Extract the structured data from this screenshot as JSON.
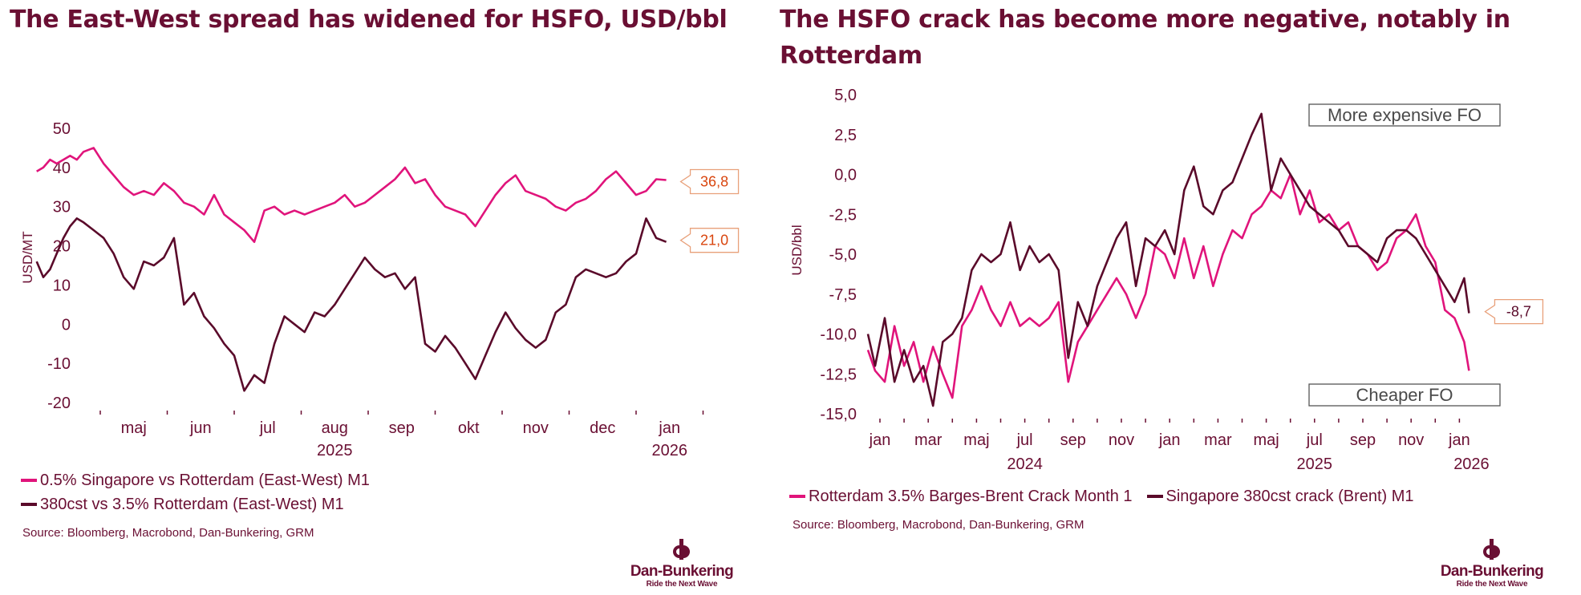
{
  "colors": {
    "brand": "#6a0f33",
    "series_pink": "#e0147b",
    "series_dark": "#5a0a2a",
    "callout_orange": "#d9460f",
    "callout_border": "#e8a07a",
    "annotation_border": "#555555"
  },
  "left": {
    "title": "The East-West spread has widened for HSFO, USD/bbl",
    "source": "Source: Bloomberg, Macrobond, Dan-Bunkering, GRM",
    "logo": {
      "name": "Dan-Bunkering",
      "tagline": "Ride the Next Wave"
    }
  },
  "right": {
    "title": "The HSFO crack has become more negative, notably in Rotterdam",
    "source": "Source: Bloomberg, Macrobond, Dan-Bunkering, GRM",
    "logo": {
      "name": "Dan-Bunkering",
      "tagline": "Ride the Next Wave"
    }
  },
  "chart_data": [
    {
      "type": "line",
      "title": "The East-West spread has widened for HSFO, USD/bbl",
      "ylabel": "USD/MT",
      "xlabel": "",
      "ylim": [
        -20,
        50
      ],
      "yticks": [
        50,
        40,
        30,
        20,
        10,
        0,
        -10,
        -20
      ],
      "x_range_months": [
        0,
        10
      ],
      "x_month_labels": [
        {
          "label": "maj",
          "pos": 0.5
        },
        {
          "label": "jun",
          "pos": 1.5
        },
        {
          "label": "jul",
          "pos": 2.5
        },
        {
          "label": "aug",
          "pos": 3.5
        },
        {
          "label": "sep",
          "pos": 4.5
        },
        {
          "label": "okt",
          "pos": 5.5
        },
        {
          "label": "nov",
          "pos": 6.5
        },
        {
          "label": "dec",
          "pos": 7.5
        },
        {
          "label": "jan",
          "pos": 8.5
        }
      ],
      "x_year_labels": [
        {
          "label": "2025",
          "pos": 3.5
        },
        {
          "label": "2026",
          "pos": 8.5
        }
      ],
      "series": [
        {
          "name": "0.5% Singapore vs Rotterdam (East-West) M1",
          "color": "#e0147b",
          "last_value_label": "36,8",
          "x": [
            -0.95,
            -0.85,
            -0.75,
            -0.65,
            -0.55,
            -0.45,
            -0.35,
            -0.25,
            -0.1,
            0.05,
            0.2,
            0.35,
            0.5,
            0.65,
            0.8,
            0.95,
            1.1,
            1.25,
            1.4,
            1.55,
            1.7,
            1.85,
            2.0,
            2.15,
            2.3,
            2.45,
            2.6,
            2.75,
            2.9,
            3.05,
            3.2,
            3.35,
            3.5,
            3.65,
            3.8,
            3.95,
            4.1,
            4.25,
            4.4,
            4.55,
            4.7,
            4.85,
            5.0,
            5.15,
            5.3,
            5.45,
            5.6,
            5.75,
            5.9,
            6.05,
            6.2,
            6.35,
            6.5,
            6.65,
            6.8,
            6.95,
            7.1,
            7.25,
            7.4,
            7.55,
            7.7,
            7.85,
            8.0,
            8.15,
            8.3,
            8.45
          ],
          "y": [
            39,
            40,
            42,
            41,
            42,
            43,
            42,
            44,
            45,
            41,
            38,
            35,
            33,
            34,
            33,
            36,
            34,
            31,
            30,
            28,
            33,
            28,
            26,
            24,
            21,
            29,
            30,
            28,
            29,
            28,
            29,
            30,
            31,
            33,
            30,
            31,
            33,
            35,
            37,
            40,
            36,
            37,
            33,
            30,
            29,
            28,
            25,
            29,
            33,
            36,
            38,
            34,
            33,
            32,
            30,
            29,
            31,
            32,
            34,
            37,
            39,
            36,
            33,
            34,
            37,
            36.8
          ]
        },
        {
          "name": "380cst vs 3.5% Rotterdam (East-West) M1",
          "color": "#5a0a2a",
          "last_value_label": "21,0",
          "x": [
            -0.95,
            -0.85,
            -0.75,
            -0.65,
            -0.55,
            -0.45,
            -0.35,
            -0.25,
            -0.1,
            0.05,
            0.2,
            0.35,
            0.5,
            0.65,
            0.8,
            0.95,
            1.1,
            1.25,
            1.4,
            1.55,
            1.7,
            1.85,
            2.0,
            2.15,
            2.3,
            2.45,
            2.6,
            2.75,
            2.9,
            3.05,
            3.2,
            3.35,
            3.5,
            3.65,
            3.8,
            3.95,
            4.1,
            4.25,
            4.4,
            4.55,
            4.7,
            4.85,
            5.0,
            5.15,
            5.3,
            5.45,
            5.6,
            5.75,
            5.9,
            6.05,
            6.2,
            6.35,
            6.5,
            6.65,
            6.8,
            6.95,
            7.1,
            7.25,
            7.4,
            7.55,
            7.7,
            7.85,
            8.0,
            8.15,
            8.3,
            8.45
          ],
          "y": [
            16,
            12,
            14,
            18,
            22,
            25,
            27,
            26,
            24,
            22,
            18,
            12,
            9,
            16,
            15,
            17,
            22,
            5,
            8,
            2,
            -1,
            -5,
            -8,
            -17,
            -13,
            -15,
            -5,
            2,
            0,
            -2,
            3,
            2,
            5,
            9,
            13,
            17,
            14,
            12,
            13,
            9,
            12,
            -5,
            -7,
            -3,
            -6,
            -10,
            -14,
            -8,
            -2,
            3,
            -1,
            -4,
            -6,
            -4,
            3,
            5,
            12,
            14,
            13,
            12,
            13,
            16,
            18,
            27,
            22,
            21
          ]
        }
      ]
    },
    {
      "type": "line",
      "title": "The HSFO crack has become more negative, notably in Rotterdam",
      "ylabel": "USD/bbl",
      "xlabel": "",
      "ylim": [
        -15,
        5
      ],
      "yticks": [
        "5,0",
        "2,5",
        "0,0",
        "-2,5",
        "-5,0",
        "-7,5",
        "-10,0",
        "-12,5",
        "-15,0"
      ],
      "ytick_values": [
        5,
        2.5,
        0,
        -2.5,
        -5,
        -7.5,
        -10,
        -12.5,
        -15
      ],
      "x_month_labels": [
        {
          "label": "jan",
          "pos": 0
        },
        {
          "label": "mar",
          "pos": 2
        },
        {
          "label": "maj",
          "pos": 4
        },
        {
          "label": "jul",
          "pos": 6
        },
        {
          "label": "sep",
          "pos": 8
        },
        {
          "label": "nov",
          "pos": 10
        },
        {
          "label": "jan",
          "pos": 12
        },
        {
          "label": "mar",
          "pos": 14
        },
        {
          "label": "maj",
          "pos": 16
        },
        {
          "label": "jul",
          "pos": 18
        },
        {
          "label": "sep",
          "pos": 20
        },
        {
          "label": "nov",
          "pos": 22
        },
        {
          "label": "jan",
          "pos": 24
        }
      ],
      "x_year_labels": [
        {
          "label": "2024",
          "pos": 6
        },
        {
          "label": "2025",
          "pos": 18
        },
        {
          "label": "2026",
          "pos": 24.5
        }
      ],
      "annotations": [
        "More expensive FO",
        "Cheaper FO"
      ],
      "series": [
        {
          "name": "Rotterdam 3.5% Barges-Brent Crack Month 1",
          "color": "#e0147b",
          "last_value_label": "",
          "x": [
            -0.5,
            -0.2,
            0.2,
            0.6,
            1.0,
            1.4,
            1.8,
            2.2,
            2.6,
            3.0,
            3.4,
            3.8,
            4.2,
            4.6,
            5.0,
            5.4,
            5.8,
            6.2,
            6.6,
            7.0,
            7.4,
            7.8,
            8.2,
            8.6,
            9.0,
            9.4,
            9.8,
            10.2,
            10.6,
            11.0,
            11.4,
            11.8,
            12.2,
            12.6,
            13.0,
            13.4,
            13.8,
            14.2,
            14.6,
            15.0,
            15.4,
            15.8,
            16.2,
            16.6,
            17.0,
            17.4,
            17.8,
            18.2,
            18.6,
            19.0,
            19.4,
            19.8,
            20.2,
            20.6,
            21.0,
            21.4,
            21.8,
            22.2,
            22.6,
            23.0,
            23.4,
            23.8,
            24.2,
            24.4
          ],
          "y": [
            -11,
            -12.3,
            -13,
            -9.5,
            -12,
            -10.5,
            -13,
            -10.8,
            -12.5,
            -14,
            -9.5,
            -8.5,
            -7,
            -8.5,
            -9.5,
            -8,
            -9.5,
            -9,
            -9.5,
            -9,
            -8,
            -13,
            -10.5,
            -9.5,
            -8.5,
            -7.5,
            -6.5,
            -7.5,
            -9,
            -7.5,
            -4.5,
            -5,
            -6.5,
            -4,
            -6.5,
            -4.5,
            -7,
            -5,
            -3.5,
            -4,
            -2.5,
            -2,
            -1,
            -1.5,
            0,
            -2.5,
            -1,
            -3,
            -2.5,
            -3.5,
            -3,
            -4.5,
            -5,
            -6,
            -5.5,
            -4,
            -3.5,
            -2.5,
            -4.5,
            -5.5,
            -8.5,
            -9,
            -10.5,
            -12.3
          ]
        },
        {
          "name": "Singapore 380cst crack (Brent) M1",
          "color": "#5a0a2a",
          "last_value_label": "-8,7",
          "x": [
            -0.5,
            -0.2,
            0.2,
            0.6,
            1.0,
            1.4,
            1.8,
            2.2,
            2.6,
            3.0,
            3.4,
            3.8,
            4.2,
            4.6,
            5.0,
            5.4,
            5.8,
            6.2,
            6.6,
            7.0,
            7.4,
            7.8,
            8.2,
            8.6,
            9.0,
            9.4,
            9.8,
            10.2,
            10.6,
            11.0,
            11.4,
            11.8,
            12.2,
            12.6,
            13.0,
            13.4,
            13.8,
            14.2,
            14.6,
            15.0,
            15.4,
            15.8,
            16.2,
            16.6,
            17.0,
            17.4,
            17.8,
            18.2,
            18.6,
            19.0,
            19.4,
            19.8,
            20.2,
            20.6,
            21.0,
            21.4,
            21.8,
            22.2,
            22.6,
            23.0,
            23.4,
            23.8,
            24.2,
            24.4
          ],
          "y": [
            -10,
            -12,
            -9,
            -13,
            -11,
            -13,
            -12,
            -14.5,
            -10.5,
            -10,
            -9,
            -6,
            -5,
            -5.5,
            -5,
            -3,
            -6,
            -4.5,
            -5.5,
            -5,
            -6,
            -11.5,
            -8,
            -9.5,
            -7,
            -5.5,
            -4,
            -3,
            -7,
            -4,
            -4.5,
            -3.5,
            -5,
            -1,
            0.5,
            -2,
            -2.5,
            -1,
            -0.5,
            1,
            2.5,
            3.8,
            -1,
            1,
            0,
            -1,
            -2,
            -2.5,
            -3,
            -3.5,
            -4.5,
            -4.5,
            -5,
            -5.5,
            -4,
            -3.5,
            -3.5,
            -4,
            -5,
            -6,
            -7,
            -8,
            -6.5,
            -8.7
          ]
        }
      ]
    }
  ]
}
